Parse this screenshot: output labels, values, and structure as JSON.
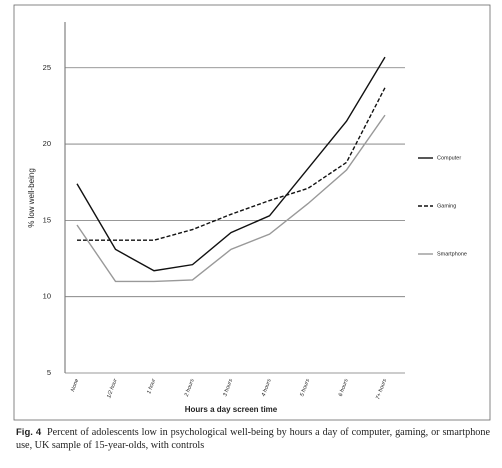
{
  "chart_data": {
    "type": "line",
    "ylabel": "% low well-being",
    "xlabel": "Hours a day screen time",
    "categories": [
      "None",
      "1/2 hour",
      "1 hour",
      "2 hours",
      "3 hours",
      "4 hours",
      "5 hours",
      "6 hours",
      "7+ hours"
    ],
    "series": [
      {
        "name": "Computer",
        "color": "#111111",
        "dash": "solid",
        "values": [
          17.4,
          13.1,
          11.7,
          12.1,
          14.2,
          15.3,
          18.4,
          21.5,
          25.7
        ]
      },
      {
        "name": "Gaming",
        "color": "#111111",
        "dash": "dashed",
        "values": [
          13.7,
          13.7,
          13.7,
          14.4,
          15.4,
          16.3,
          17.1,
          18.8,
          23.7
        ]
      },
      {
        "name": "Smartphone",
        "color": "#999999",
        "dash": "solid",
        "values": [
          14.7,
          11.0,
          11.0,
          11.1,
          13.1,
          14.1,
          16.1,
          18.3,
          21.9
        ]
      }
    ],
    "ylim": [
      5,
      28
    ],
    "yticks": [
      5,
      10,
      15,
      20,
      25
    ],
    "grid": true,
    "legend": "right"
  },
  "caption": {
    "label": "Fig. 4",
    "text": "Percent of adolescents low in psychological well-being by hours a day of computer, gaming, or smartphone use, UK sample of 15-year-olds, with controls"
  }
}
